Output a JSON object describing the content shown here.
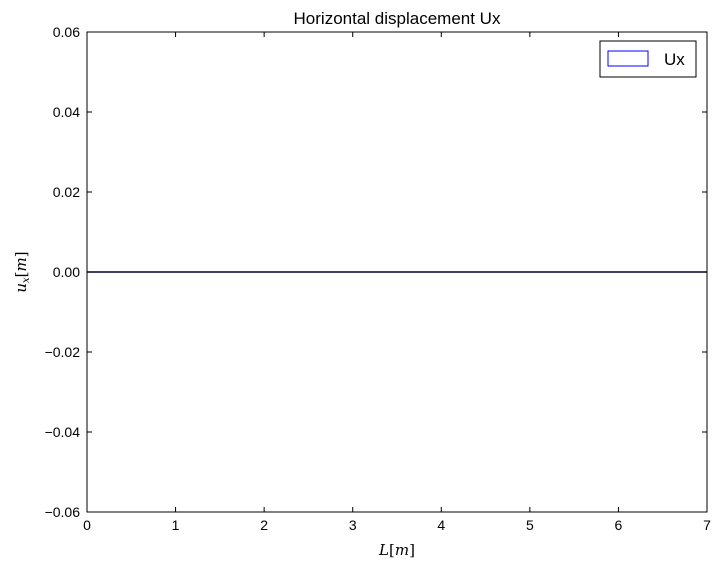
{
  "chart_data": {
    "type": "area",
    "title": "Horizontal displacement Ux",
    "xlabel": "L[m]",
    "ylabel": "u_x[m]",
    "xlim": [
      0,
      7
    ],
    "ylim": [
      -0.06,
      0.06
    ],
    "x_ticks": [
      0,
      1,
      2,
      3,
      4,
      5,
      6,
      7
    ],
    "x_tick_labels": [
      "0",
      "1",
      "2",
      "3",
      "4",
      "5",
      "6",
      "7"
    ],
    "y_ticks": [
      0.06,
      0.04,
      0.02,
      0.0,
      -0.02,
      -0.04,
      -0.06
    ],
    "y_tick_labels": [
      "0.06",
      "0.04",
      "0.02",
      "0.00",
      "−0.02",
      "−0.04",
      "−0.06"
    ],
    "grid": false,
    "legend_position": "top-right",
    "series": [
      {
        "name": "Ux",
        "color": "#0000ff",
        "x": [
          0,
          1,
          2,
          3,
          4,
          5,
          6,
          7
        ],
        "values": [
          0,
          0,
          0,
          0,
          0,
          0,
          0,
          0
        ]
      }
    ]
  }
}
